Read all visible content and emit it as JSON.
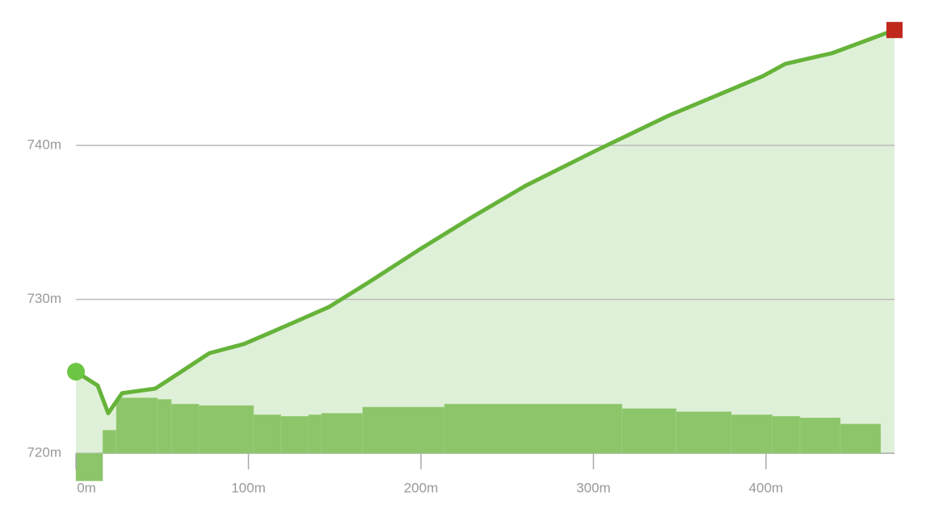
{
  "chart_data": {
    "type": "line",
    "x": [
      0,
      12.6,
      18.7,
      26.7,
      45.9,
      52.9,
      77.3,
      97.4,
      112,
      128.3,
      146.6,
      169.6,
      200,
      230.5,
      260.9,
      300.2,
      342.8,
      398.1,
      411.2,
      438.4,
      474.5
    ],
    "series": [
      {
        "color": "#66b33a",
        "values": [
          725.3,
          724.4,
          722.6,
          723.9,
          724.2,
          724.7,
          726.5,
          727.1,
          727.8,
          728.6,
          729.5,
          731.1,
          733.3,
          735.4,
          737.4,
          739.6,
          741.9,
          744.5,
          745.3,
          746.0,
          747.5
        ]
      }
    ],
    "bars": {
      "color": "#8cc56a",
      "bins": [
        0,
        15.5,
        23.4,
        47.3,
        55.3,
        71.2,
        103.0,
        118.9,
        134.8,
        142.3,
        166.2,
        213.6,
        316.6,
        348.0,
        379.9,
        403.7,
        419.7,
        443.1,
        466.5
      ],
      "values": [
        718.2,
        721.5,
        723.6,
        723.5,
        723.2,
        723.1,
        722.5,
        722.4,
        722.5,
        722.6,
        723.0,
        723.2,
        722.9,
        722.7,
        722.5,
        722.4,
        722.3,
        721.9
      ]
    },
    "xlim": [
      0,
      474.5
    ],
    "ylim": [
      717.5,
      749
    ],
    "xticks": [
      {
        "value": 0,
        "label": "0m"
      },
      {
        "value": 100,
        "label": "100m"
      },
      {
        "value": 200,
        "label": "200m"
      },
      {
        "value": 300,
        "label": "300m"
      },
      {
        "value": 400,
        "label": "400m"
      }
    ],
    "yticks": [
      {
        "value": 720,
        "label": "720m"
      },
      {
        "value": 730,
        "label": "730m"
      },
      {
        "value": 740,
        "label": "740m"
      }
    ],
    "grid": true
  }
}
